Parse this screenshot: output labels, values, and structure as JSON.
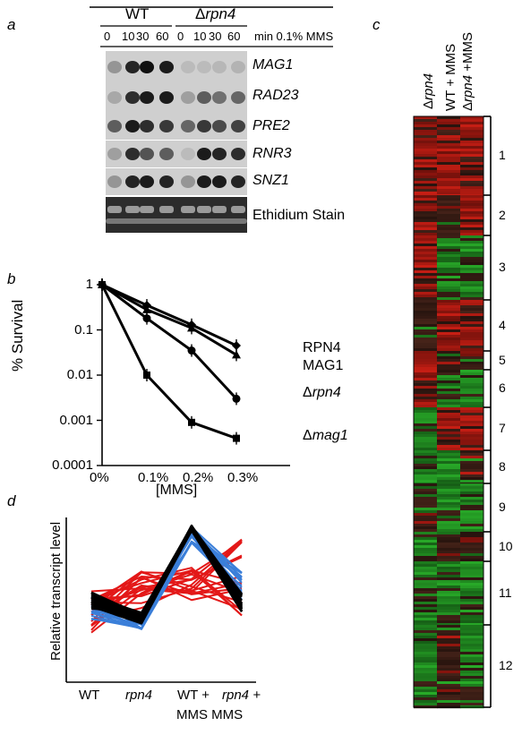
{
  "panel_labels": [
    "a",
    "b",
    "c",
    "d"
  ],
  "panel_a": {
    "groups": [
      "WT",
      "Δrpn4"
    ],
    "wt": "WT",
    "rpn4_delta": "Δ",
    "rpn4_gene": "rpn4",
    "lanes": [
      "0",
      "10",
      "30",
      "60",
      "0",
      "10",
      "30",
      "60"
    ],
    "timepoint_unit": "min 0.1% MMS",
    "genes": [
      "MAG1",
      "RAD23",
      "PRE2",
      "RNR3",
      "SNZ1"
    ],
    "stain_label": "Ethidium Stain"
  },
  "panel_b": {
    "y_label": "% Survival",
    "x_label": "[MMS]",
    "y_ticks": [
      "1",
      "0.1",
      "0.01",
      "0.001",
      "0.0001"
    ],
    "x_ticks": [
      "0%",
      "0.1%",
      "0.2%",
      "0.3%"
    ],
    "series_labels": {
      "rpn4": "RPN4",
      "mag1": "MAG1",
      "delta_rpn4_prefix": "Δ",
      "delta_rpn4_gene": "rpn4",
      "delta_mag1_prefix": "Δ",
      "delta_mag1_gene": "mag1"
    }
  },
  "panel_c": {
    "columns": [
      "Δrpn4",
      "WT + MMS",
      "Δrpn4 +MMS"
    ],
    "col1_prefix": "Δ",
    "col1_gene": "rpn4",
    "col2": "WT + MMS",
    "col3_prefix": "Δ",
    "col3_gene": "rpn4",
    "col3_suffix": " +MMS",
    "clusters": [
      "1",
      "2",
      "3",
      "4",
      "5",
      "6",
      "7",
      "8",
      "9",
      "10",
      "11",
      "12"
    ]
  },
  "panel_d": {
    "y_label": "Relative transcript level",
    "x_ticks": [
      "WT",
      "rpn4",
      "WT +",
      "rpn4 +"
    ],
    "x_ticks_line2": "MMS MMS"
  },
  "chart_data": [
    {
      "type": "line",
      "panel": "b",
      "x": [
        "0%",
        "0.1%",
        "0.2%",
        "0.3%"
      ],
      "y_scale": "log",
      "ylim": [
        0.0001,
        1
      ],
      "ylabel": "% Survival",
      "xlabel": "[MMS]",
      "series": [
        {
          "name": "RPN4",
          "values": [
            1,
            0.35,
            0.13,
            0.045
          ]
        },
        {
          "name": "MAG1",
          "values": [
            1,
            0.28,
            0.11,
            0.028
          ]
        },
        {
          "name": "Δrpn4",
          "values": [
            1,
            0.18,
            0.035,
            0.003
          ]
        },
        {
          "name": "Δmag1",
          "values": [
            1,
            0.01,
            0.0009,
            0.0004
          ]
        }
      ]
    },
    {
      "type": "line",
      "panel": "d",
      "x": [
        "WT",
        "rpn4",
        "WT + MMS",
        "rpn4 + MMS"
      ],
      "ylabel": "Relative transcript level",
      "series": [
        {
          "color": "#000000",
          "values": [
            0.5,
            0.38,
            1.0,
            0.5
          ]
        },
        {
          "color": "#3b7fd9",
          "values": [
            0.45,
            0.35,
            0.95,
            0.6
          ]
        },
        {
          "color": "#e31818",
          "values": [
            0.4,
            0.55,
            0.8,
            0.75
          ]
        }
      ]
    }
  ],
  "colors": {
    "red": "#c81a10",
    "green": "#2b9a2b",
    "blue": "#3b7fd9",
    "black": "#000000"
  }
}
